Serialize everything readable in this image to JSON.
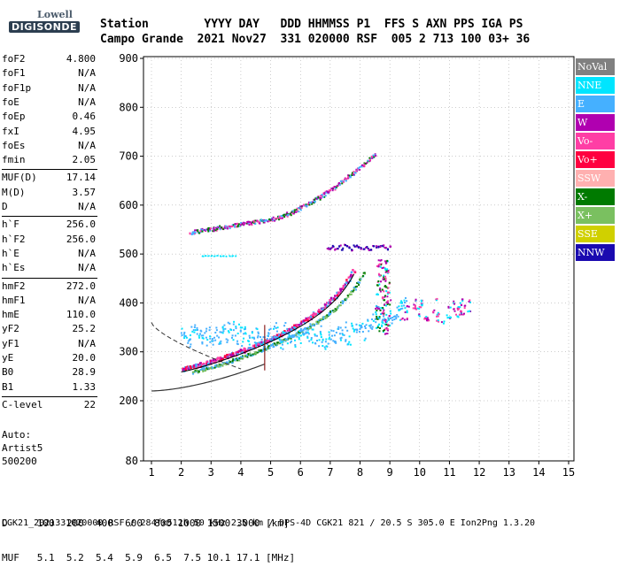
{
  "logo": {
    "line1": "Lowell",
    "line2": "DIGISONDE"
  },
  "header": {
    "line1": "Station        YYYY DAY   DDD HHMMSS P1  FFS S AXN PPS IGA PS",
    "line2": "Campo Grande  2021 Nov27  331 020000 RSF  005 2 713 100 03+ 36"
  },
  "params": {
    "group1": [
      {
        "k": "foF2",
        "v": "4.800"
      },
      {
        "k": "foF1",
        "v": "N/A"
      },
      {
        "k": "foF1p",
        "v": "N/A"
      },
      {
        "k": "foE",
        "v": "N/A"
      },
      {
        "k": "foEp",
        "v": "0.46"
      },
      {
        "k": "fxI",
        "v": "4.95"
      },
      {
        "k": "foEs",
        "v": "N/A"
      },
      {
        "k": "fmin",
        "v": "2.05"
      }
    ],
    "group2": [
      {
        "k": "MUF(D)",
        "v": "17.14"
      },
      {
        "k": "M(D)",
        "v": "3.57"
      },
      {
        "k": "D",
        "v": "N/A"
      }
    ],
    "group3": [
      {
        "k": "h`F",
        "v": "256.0"
      },
      {
        "k": "h`F2",
        "v": "256.0"
      },
      {
        "k": "h`E",
        "v": "N/A"
      },
      {
        "k": "h`Es",
        "v": "N/A"
      }
    ],
    "group4": [
      {
        "k": "hmF2",
        "v": "272.0"
      },
      {
        "k": "hmF1",
        "v": "N/A"
      },
      {
        "k": "hmE",
        "v": "110.0"
      },
      {
        "k": "yF2",
        "v": "25.2"
      },
      {
        "k": "yF1",
        "v": "N/A"
      },
      {
        "k": "yE",
        "v": "20.0"
      },
      {
        "k": "B0",
        "v": "28.9"
      },
      {
        "k": "B1",
        "v": "1.33"
      }
    ],
    "group5": [
      {
        "k": "C-level",
        "v": "22"
      }
    ]
  },
  "auto": {
    "line1": "Auto:",
    "line2": "Artist5",
    "line3": "500200"
  },
  "legend": [
    {
      "label": "NoVal",
      "color": "#808080"
    },
    {
      "label": "NNE",
      "color": "#00e5ff"
    },
    {
      "label": "E",
      "color": "#45b0ff"
    },
    {
      "label": "W",
      "color": "#b000b0"
    },
    {
      "label": "Vo-",
      "color": "#ff3ea5"
    },
    {
      "label": "Vo+",
      "color": "#ff0040"
    },
    {
      "label": "SSW",
      "color": "#ffb0b0"
    },
    {
      "label": "X-",
      "color": "#007a00"
    },
    {
      "label": "X+",
      "color": "#7ac060"
    },
    {
      "label": "SSE",
      "color": "#d0d000"
    },
    {
      "label": "NNW",
      "color": "#1a0ab0"
    }
  ],
  "chart_data": {
    "type": "scatter",
    "xlim": [
      0.5,
      15.5
    ],
    "ylim": [
      80,
      900
    ],
    "xticks": [
      "1",
      "2",
      "3",
      "4",
      "5",
      "6",
      "7",
      "8",
      "9",
      "10",
      "11",
      "12",
      "13",
      "14",
      "15"
    ],
    "yticks": [
      "80",
      "200",
      "300",
      "400",
      "500",
      "600",
      "700",
      "800",
      "900"
    ],
    "grid": true
  },
  "bottom": {
    "line1": "D     100  200  400  600  800 1000 1500 3000 [km]",
    "line2": "MUF   5.1  5.2  5.4  5.9  6.5  7.5 10.1 17.1 [MHz]"
  },
  "footer": "CGK21_2021331020000.RSF / 284fx512h 50 kHz 2.5 km / DPS-4D CGK21 821 / 20.5 S 305.0 E Ion2Png 1.3.20"
}
